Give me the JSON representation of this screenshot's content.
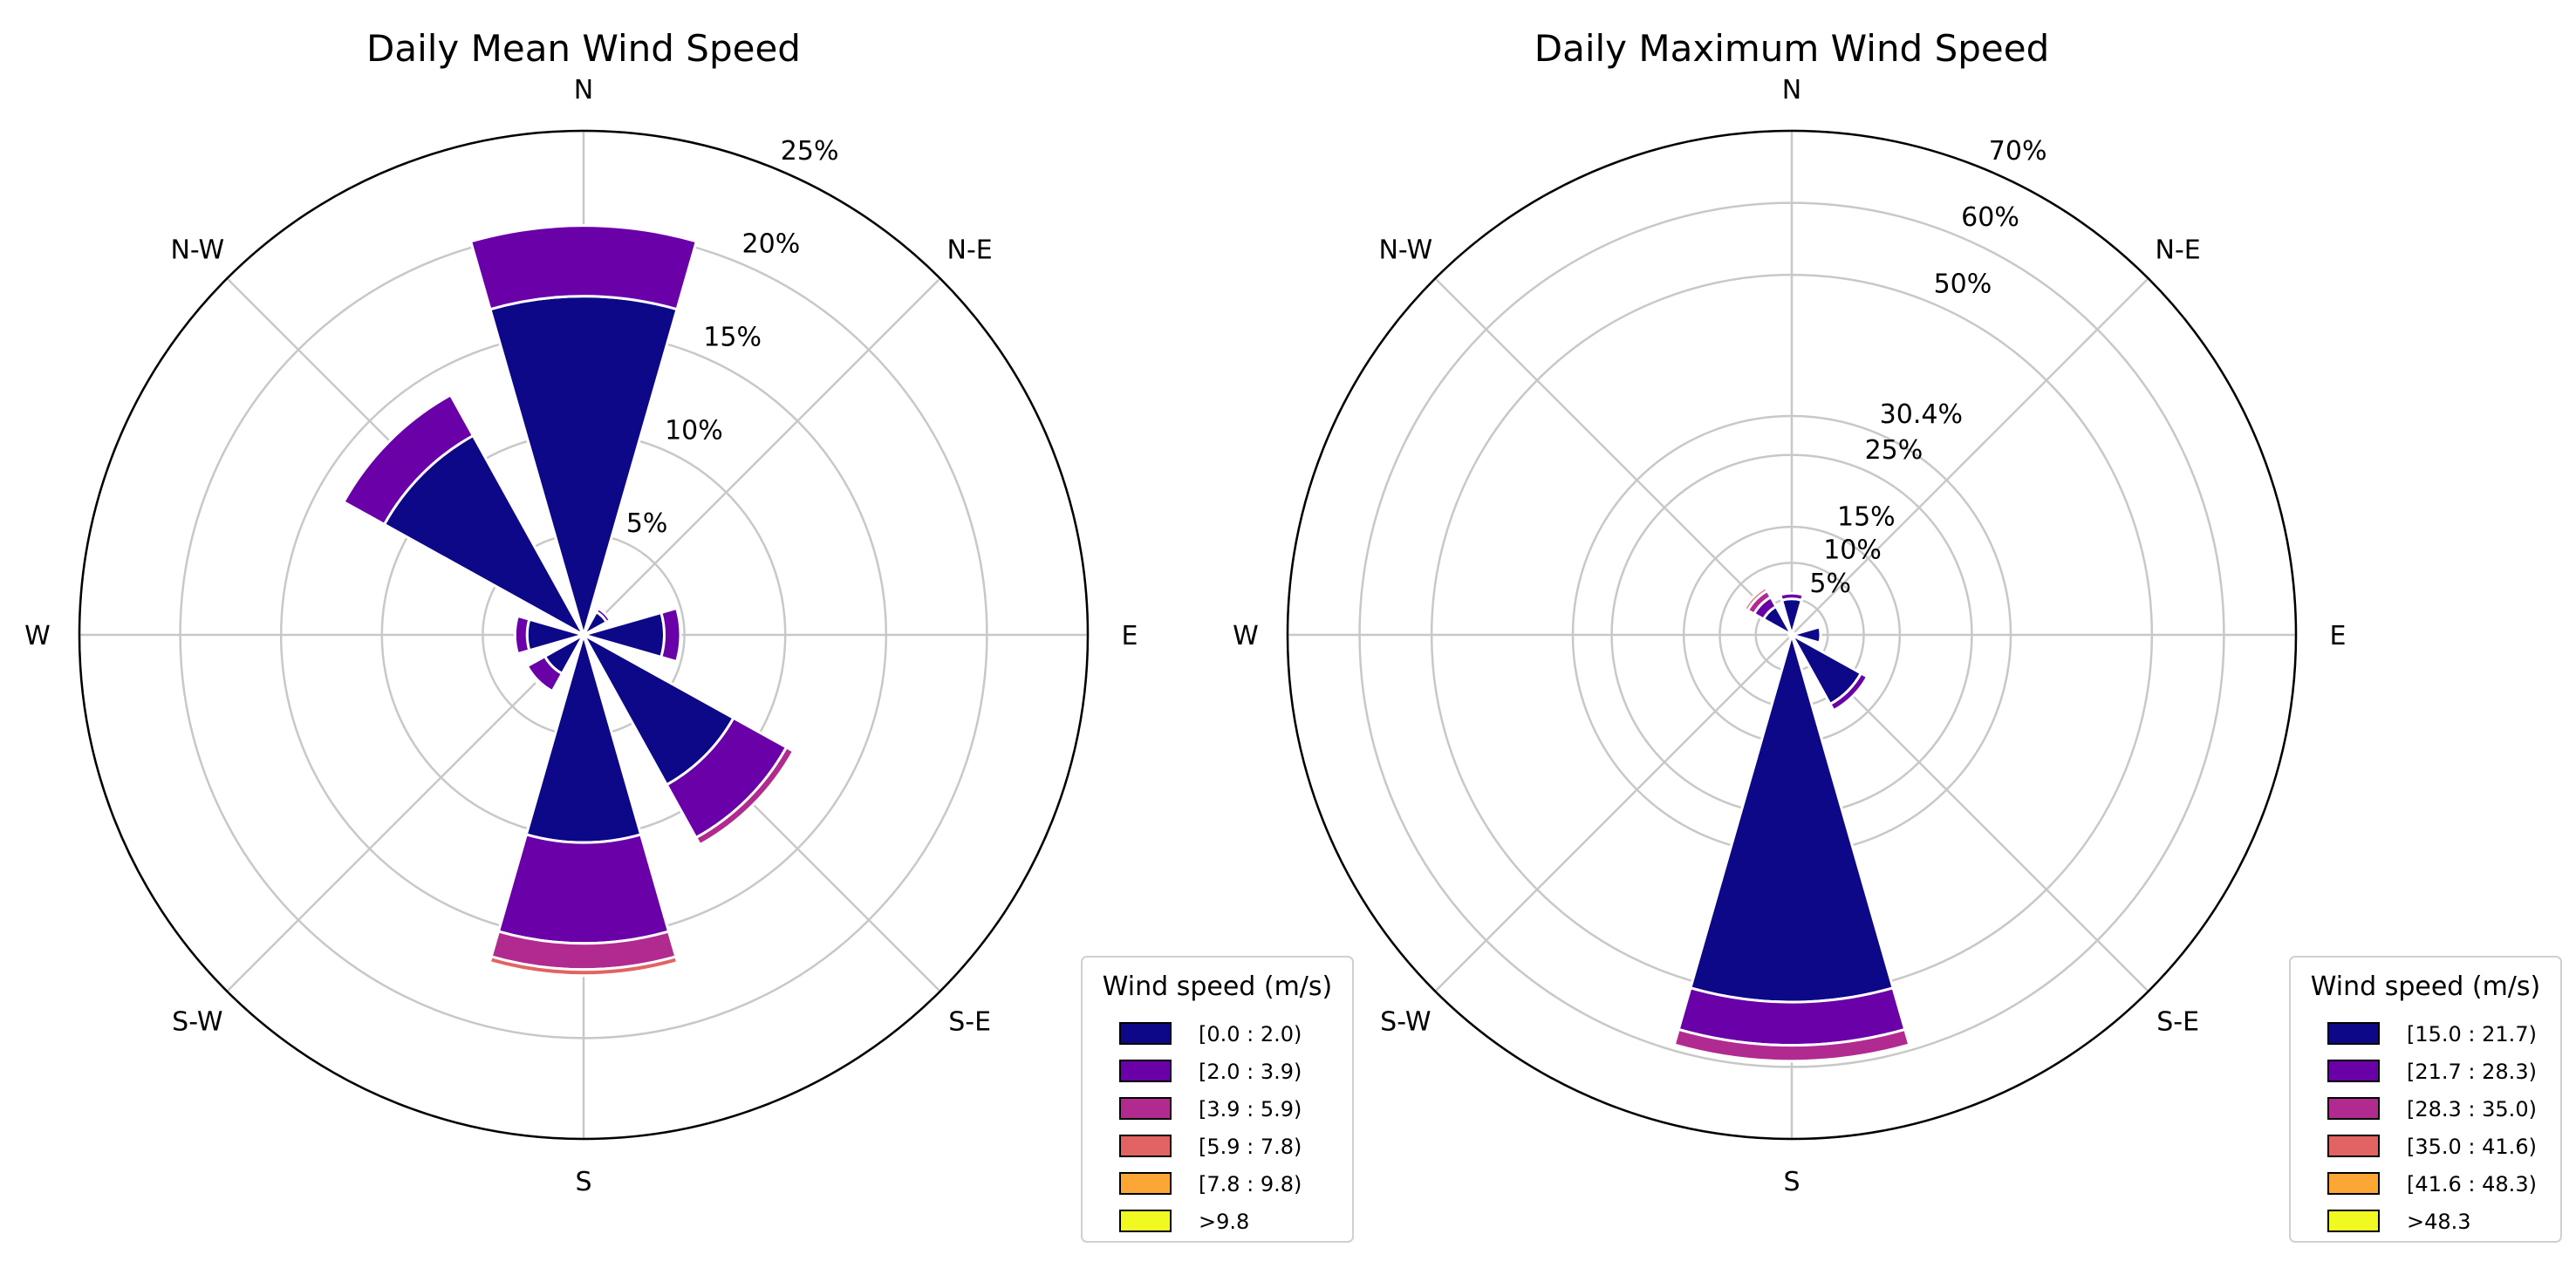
{
  "chart_data": [
    {
      "type": "windrose",
      "title": "Daily Mean Wind Speed",
      "directions": [
        "N",
        "N-E",
        "E",
        "S-E",
        "S",
        "S-W",
        "W",
        "N-W"
      ],
      "radial_ticks": [
        "5%",
        "10%",
        "15%",
        "20%",
        "25%"
      ],
      "radial_tick_values": [
        5,
        10,
        15,
        20,
        25
      ],
      "rmax": 25,
      "legend": {
        "title": "Wind speed (m/s)",
        "bins": [
          "[0.0 : 2.0)",
          "[2.0 : 3.9)",
          "[3.9 : 5.9)",
          "[5.9 : 7.8)",
          "[7.8 : 9.8)",
          ">9.8"
        ]
      },
      "colors": [
        "#0d0887",
        "#6a00a8",
        "#b12a90",
        "#e16462",
        "#fca636",
        "#f0f921"
      ],
      "series": [
        {
          "bin": "[0.0 : 2.0)",
          "values": [
            16.8,
            1.3,
            4.0,
            8.5,
            10.3,
            2.2,
            2.8,
            11.3
          ]
        },
        {
          "bin": "[2.0 : 3.9)",
          "values": [
            3.5,
            0.2,
            0.8,
            3.0,
            5.0,
            1.0,
            0.6,
            2.3
          ]
        },
        {
          "bin": "[3.9 : 5.9)",
          "values": [
            0.0,
            0.0,
            0.0,
            0.4,
            1.3,
            0.1,
            0.0,
            0.0
          ]
        },
        {
          "bin": "[5.9 : 7.8)",
          "values": [
            0.0,
            0.0,
            0.0,
            0.0,
            0.3,
            0.0,
            0.0,
            0.0
          ]
        },
        {
          "bin": "[7.8 : 9.8)",
          "values": [
            0.0,
            0.0,
            0.0,
            0.0,
            0.0,
            0.0,
            0.0,
            0.0
          ]
        },
        {
          "bin": ">9.8",
          "values": [
            0.0,
            0.0,
            0.0,
            0.0,
            0.0,
            0.0,
            0.0,
            0.0
          ]
        }
      ]
    },
    {
      "type": "windrose",
      "title": "Daily Maximum Wind Speed",
      "directions": [
        "N",
        "N-E",
        "E",
        "S-E",
        "S",
        "S-W",
        "W",
        "N-W"
      ],
      "radial_ticks": [
        "5%",
        "10%",
        "15%",
        "25%",
        "30.4%",
        "50%",
        "60%",
        "70%"
      ],
      "radial_tick_values": [
        5,
        10,
        15,
        25,
        30.4,
        50,
        60,
        70
      ],
      "rmax": 70,
      "legend": {
        "title": "Wind speed (m/s)",
        "bins": [
          "[15.0 : 21.7)",
          "[21.7 : 28.3)",
          "[28.3 : 35.0)",
          "[35.0 : 41.6)",
          "[41.6 : 48.3)",
          ">48.3"
        ]
      },
      "colors": [
        "#0d0887",
        "#6a00a8",
        "#b12a90",
        "#e16462",
        "#fca636",
        "#f0f921"
      ],
      "series": [
        {
          "bin": "[15.0 : 21.7)",
          "values": [
            5.0,
            0.3,
            4.0,
            11.0,
            51.0,
            0.3,
            0.3,
            4.5
          ]
        },
        {
          "bin": "[21.7 : 28.3)",
          "values": [
            0.8,
            0.0,
            0.0,
            1.0,
            6.0,
            0.0,
            0.0,
            1.5
          ]
        },
        {
          "bin": "[28.3 : 35.0)",
          "values": [
            0.0,
            0.0,
            0.0,
            0.0,
            2.2,
            0.0,
            0.0,
            1.0
          ]
        },
        {
          "bin": "[35.0 : 41.6)",
          "values": [
            0.0,
            0.0,
            0.0,
            0.0,
            0.0,
            0.0,
            0.0,
            0.5
          ]
        },
        {
          "bin": "[41.6 : 48.3)",
          "values": [
            0.0,
            0.0,
            0.0,
            0.0,
            0.0,
            0.0,
            0.0,
            0.0
          ]
        },
        {
          "bin": ">48.3",
          "values": [
            0.0,
            0.0,
            0.0,
            0.0,
            0.0,
            0.0,
            0.0,
            0.0
          ]
        }
      ]
    }
  ]
}
